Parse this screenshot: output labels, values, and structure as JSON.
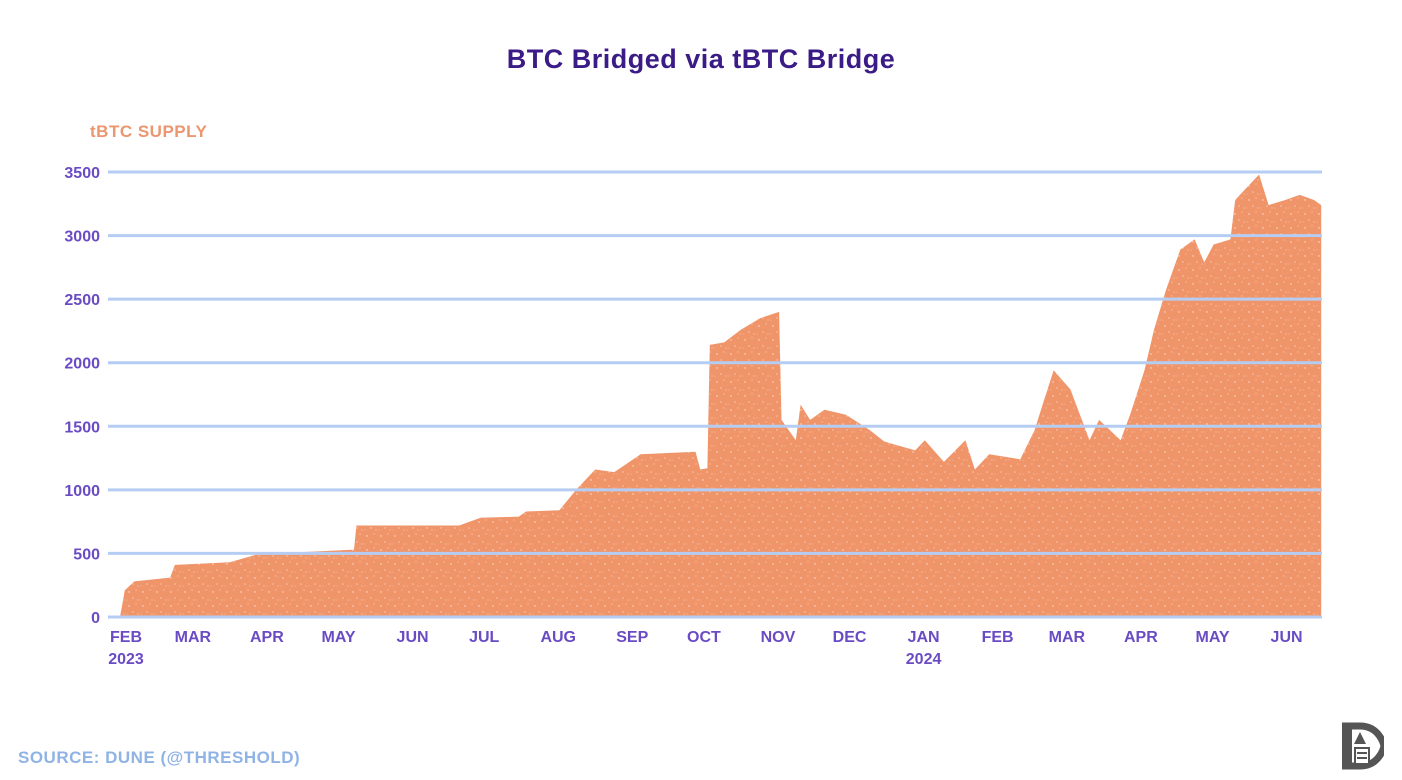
{
  "chart_data": {
    "type": "area",
    "title": "BTC Bridged via tBTC Bridge",
    "ylabel": "tBTC SUPPLY",
    "xlabel": "",
    "ylim": [
      0,
      3500
    ],
    "yticks": [
      0,
      500,
      1000,
      1500,
      2000,
      2500,
      3000,
      3500
    ],
    "grid": "horizontal",
    "colors": {
      "area": "#ef9569",
      "grid": "#b6cdf3",
      "title": "#3b1b86",
      "ticks": "#6a4bc4",
      "ylabel": "#ec9670",
      "source": "#90b3e6"
    },
    "xticks": [
      {
        "date": "2023-02-01",
        "label": "FEB",
        "sub": "2023"
      },
      {
        "date": "2023-03-01",
        "label": "MAR"
      },
      {
        "date": "2023-04-01",
        "label": "APR"
      },
      {
        "date": "2023-05-01",
        "label": "MAY"
      },
      {
        "date": "2023-06-01",
        "label": "JUN"
      },
      {
        "date": "2023-07-01",
        "label": "JUL"
      },
      {
        "date": "2023-08-01",
        "label": "AUG"
      },
      {
        "date": "2023-09-01",
        "label": "SEP"
      },
      {
        "date": "2023-10-01",
        "label": "OCT"
      },
      {
        "date": "2023-11-01",
        "label": "NOV"
      },
      {
        "date": "2023-12-01",
        "label": "DEC"
      },
      {
        "date": "2024-01-01",
        "label": "JAN",
        "sub": "2024"
      },
      {
        "date": "2024-02-01",
        "label": "FEB"
      },
      {
        "date": "2024-03-01",
        "label": "MAR"
      },
      {
        "date": "2024-04-01",
        "label": "APR"
      },
      {
        "date": "2024-05-01",
        "label": "MAY"
      },
      {
        "date": "2024-06-01",
        "label": "JUN"
      }
    ],
    "points": [
      [
        "2023-02-01",
        0
      ],
      [
        "2023-02-03",
        210
      ],
      [
        "2023-02-07",
        280
      ],
      [
        "2023-02-22",
        310
      ],
      [
        "2023-02-24",
        410
      ],
      [
        "2023-03-19",
        430
      ],
      [
        "2023-03-30",
        490
      ],
      [
        "2023-04-17",
        510
      ],
      [
        "2023-05-10",
        530
      ],
      [
        "2023-05-11",
        720
      ],
      [
        "2023-06-23",
        720
      ],
      [
        "2023-07-02",
        780
      ],
      [
        "2023-07-18",
        790
      ],
      [
        "2023-07-21",
        830
      ],
      [
        "2023-08-04",
        840
      ],
      [
        "2023-08-11",
        1000
      ],
      [
        "2023-08-19",
        1160
      ],
      [
        "2023-08-27",
        1140
      ],
      [
        "2023-09-07",
        1280
      ],
      [
        "2023-09-30",
        1300
      ],
      [
        "2023-10-02",
        1160
      ],
      [
        "2023-10-05",
        1170
      ],
      [
        "2023-10-06",
        2140
      ],
      [
        "2023-10-12",
        2160
      ],
      [
        "2023-10-19",
        2260
      ],
      [
        "2023-10-27",
        2350
      ],
      [
        "2023-11-04",
        2400
      ],
      [
        "2023-11-05",
        1550
      ],
      [
        "2023-11-11",
        1390
      ],
      [
        "2023-11-13",
        1670
      ],
      [
        "2023-11-17",
        1550
      ],
      [
        "2023-11-23",
        1630
      ],
      [
        "2023-12-02",
        1590
      ],
      [
        "2023-12-12",
        1470
      ],
      [
        "2023-12-18",
        1380
      ],
      [
        "2023-12-31",
        1310
      ],
      [
        "2024-01-04",
        1390
      ],
      [
        "2024-01-12",
        1220
      ],
      [
        "2024-01-21",
        1390
      ],
      [
        "2024-01-25",
        1160
      ],
      [
        "2024-01-31",
        1280
      ],
      [
        "2024-02-13",
        1240
      ],
      [
        "2024-02-19",
        1470
      ],
      [
        "2024-02-23",
        1710
      ],
      [
        "2024-02-27",
        1940
      ],
      [
        "2024-03-05",
        1790
      ],
      [
        "2024-03-13",
        1390
      ],
      [
        "2024-03-17",
        1550
      ],
      [
        "2024-03-26",
        1390
      ],
      [
        "2024-03-30",
        1590
      ],
      [
        "2024-04-05",
        1940
      ],
      [
        "2024-04-09",
        2260
      ],
      [
        "2024-04-14",
        2570
      ],
      [
        "2024-04-20",
        2890
      ],
      [
        "2024-04-26",
        2970
      ],
      [
        "2024-04-30",
        2790
      ],
      [
        "2024-05-04",
        2930
      ],
      [
        "2024-05-11",
        2970
      ],
      [
        "2024-05-13",
        3280
      ],
      [
        "2024-05-17",
        3360
      ],
      [
        "2024-05-23",
        3480
      ],
      [
        "2024-05-27",
        3240
      ],
      [
        "2024-06-03",
        3280
      ],
      [
        "2024-06-09",
        3320
      ],
      [
        "2024-06-15",
        3280
      ],
      [
        "2024-06-18",
        3240
      ]
    ]
  },
  "source": "SOURCE: DUNE (@THRESHOLD)",
  "logo": "publisher-logo"
}
